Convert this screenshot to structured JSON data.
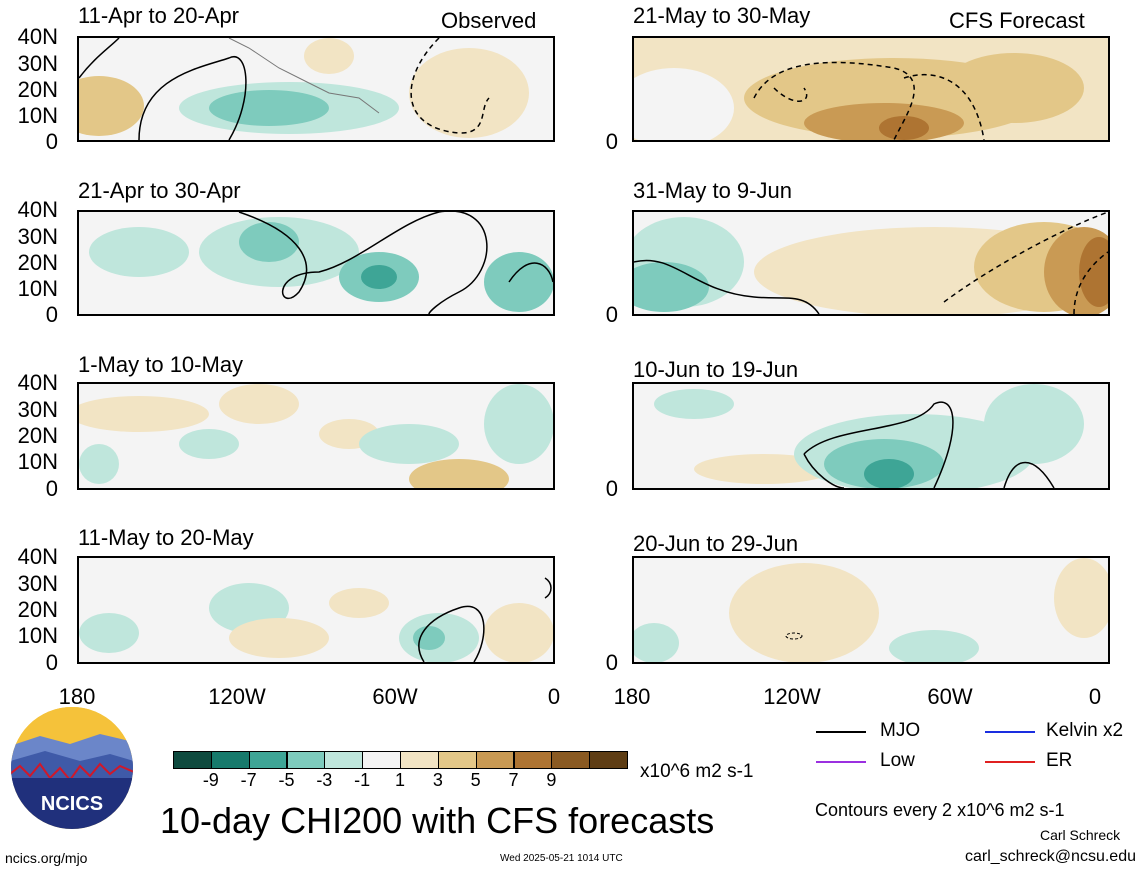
{
  "panels": [
    {
      "title": "11-Apr to 20-Apr",
      "tag": "Observed"
    },
    {
      "title": "21-Apr to 30-Apr",
      "tag": ""
    },
    {
      "title": "1-May to 10-May",
      "tag": ""
    },
    {
      "title": "11-May to 20-May",
      "tag": ""
    },
    {
      "title": "21-May to 30-May",
      "tag": "CFS Forecast"
    },
    {
      "title": "31-May to 9-Jun",
      "tag": ""
    },
    {
      "title": "10-Jun to 19-Jun",
      "tag": ""
    },
    {
      "title": "20-Jun to 29-Jun",
      "tag": ""
    }
  ],
  "lat_labels": [
    "40N",
    "30N",
    "20N",
    "10N",
    "0"
  ],
  "lon_labels": [
    "180",
    "120W",
    "60W",
    "0"
  ],
  "colorbar": {
    "colors": [
      "#0e4a3e",
      "#177a6c",
      "#3ea596",
      "#7ecbbd",
      "#bfe6dc",
      "#f4f4f4",
      "#f2e4c4",
      "#e3c788",
      "#c99a54",
      "#ae7432",
      "#8a5a22",
      "#5e3d14"
    ],
    "labels": [
      "-9",
      "-7",
      "-5",
      "-3",
      "-1",
      "1",
      "3",
      "5",
      "7",
      "9"
    ],
    "units": "x10^6 m2 s-1"
  },
  "legend": [
    {
      "name": "MJO",
      "color": "#000000"
    },
    {
      "name": "Kelvin x2",
      "color": "#1a2ee0"
    },
    {
      "name": "Low",
      "color": "#9b30e0"
    },
    {
      "name": "ER",
      "color": "#e02020"
    }
  ],
  "main_title": "10-day CHI200 with CFS forecasts",
  "contours_note": "Contours every 2 x10^6 m2 s-1",
  "author": "Carl Schreck",
  "email": "carl_schreck@ncsu.edu",
  "url": "ncics.org/mjo",
  "timestamp": "Wed 2025-05-21 1014 UTC",
  "logo_text": "NCICS"
}
